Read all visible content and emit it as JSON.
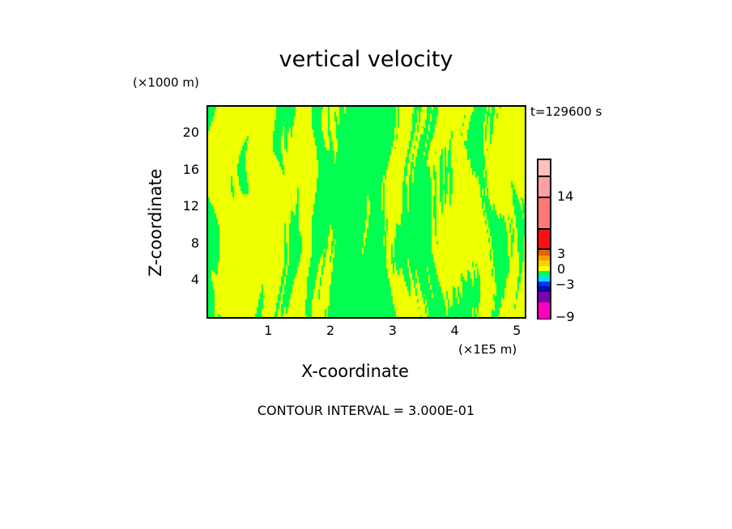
{
  "chart_data": {
    "type": "heatmap",
    "title": "vertical velocity",
    "xlabel": "X-coordinate",
    "ylabel": "Z-coordinate",
    "x_unit": "(×1E5 m)",
    "y_unit": "(×1000 m)",
    "time_label": "t=129600 s",
    "footer": "CONTOUR INTERVAL = 3.000E-01",
    "xlim": [
      0,
      5.12
    ],
    "ylim": [
      0,
      23
    ],
    "xticks": [
      "1",
      "2",
      "3",
      "4",
      "5"
    ],
    "xtick_values": [
      1,
      2,
      3,
      4,
      5
    ],
    "yticks": [
      "4",
      "8",
      "12",
      "16",
      "20"
    ],
    "ytick_values": [
      4,
      8,
      12,
      16,
      20
    ],
    "colorbar": {
      "labels": [
        "14",
        "3",
        "0",
        "−3",
        "−9"
      ],
      "label_values": [
        14,
        3,
        0,
        -3,
        -9
      ],
      "colors": [
        "#ffc0c0",
        "#ffa0a0",
        "#ff7878",
        "#ff1010",
        "#e06400",
        "#ff9c00",
        "#ffd000",
        "#ffff00",
        "#00ff50",
        "#00e0ff",
        "#0030ff",
        "#0010a0",
        "#8000b0",
        "#ff00c0"
      ]
    },
    "field_colors": {
      "positive": "#eeff00",
      "negative": "#00ff50"
    }
  }
}
